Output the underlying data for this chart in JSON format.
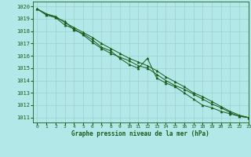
{
  "title": "Graphe pression niveau de la mer (hPa)",
  "bg_color": "#b3e8e8",
  "grid_color": "#9fcfcf",
  "line_color": "#1a5c1a",
  "marker_color": "#1a5c1a",
  "xlim": [
    -0.5,
    23
  ],
  "ylim": [
    1010.6,
    1020.4
  ],
  "yticks": [
    1011,
    1012,
    1013,
    1014,
    1015,
    1016,
    1017,
    1018,
    1019,
    1020
  ],
  "xticks": [
    0,
    1,
    2,
    3,
    4,
    5,
    6,
    7,
    8,
    9,
    10,
    11,
    12,
    13,
    14,
    15,
    16,
    17,
    18,
    19,
    20,
    21,
    22,
    23
  ],
  "series": [
    [
      1019.8,
      1019.3,
      1019.1,
      1018.8,
      1018.1,
      1017.8,
      1017.3,
      1016.7,
      1016.4,
      1015.8,
      1015.3,
      1015.0,
      1015.8,
      1014.2,
      1013.8,
      1013.5,
      1013.0,
      1012.5,
      1012.0,
      1011.8,
      1011.5,
      1011.3,
      1011.1,
      1011.0
    ],
    [
      1019.8,
      1019.4,
      1019.1,
      1018.5,
      1018.2,
      1017.7,
      1017.1,
      1016.6,
      1016.2,
      1015.9,
      1015.6,
      1015.2,
      1015.0,
      1014.5,
      1014.0,
      1013.6,
      1013.3,
      1012.9,
      1012.5,
      1012.1,
      1011.8,
      1011.4,
      1011.1,
      1011.0
    ],
    [
      1019.8,
      1019.4,
      1019.2,
      1018.7,
      1018.3,
      1017.9,
      1017.5,
      1017.0,
      1016.6,
      1016.2,
      1015.8,
      1015.5,
      1015.2,
      1014.8,
      1014.3,
      1013.9,
      1013.5,
      1013.0,
      1012.7,
      1012.3,
      1011.9,
      1011.5,
      1011.2,
      1011.0
    ]
  ],
  "xlabel_fontsize": 5.5,
  "ytick_fontsize": 5.0,
  "xtick_fontsize": 4.5
}
